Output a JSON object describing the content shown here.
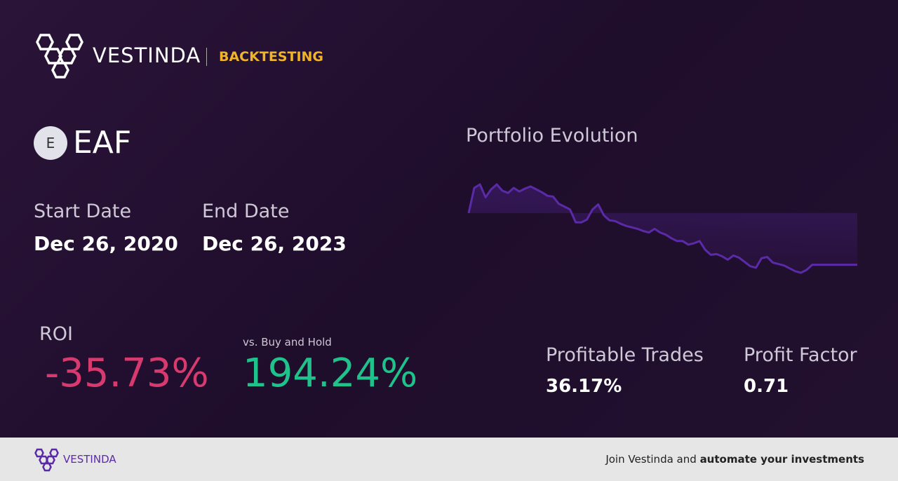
{
  "header": {
    "brand": "VESTINDA",
    "section": "BACKTESTING"
  },
  "ticker": {
    "icon": "E",
    "symbol": "EAF"
  },
  "dates": {
    "start_label": "Start Date",
    "start": "Dec 26, 2020",
    "end_label": "End Date",
    "end": "Dec 26, 2023"
  },
  "roi": {
    "label": "ROI",
    "value": "-35.73%",
    "compare_label": "vs. Buy and Hold",
    "compare_value": "194.24%"
  },
  "stats": [
    {
      "label": "Profitable Trades",
      "value": "36.17%"
    },
    {
      "label": "Profit Factor",
      "value": "0.71"
    }
  ],
  "chart": {
    "type": "line",
    "title": "Portfolio Evolution",
    "color": "#5b2aa8",
    "values": [
      100,
      117.4,
      119.8,
      110.9,
      116.4,
      119.8,
      115.4,
      113.9,
      117.4,
      114.9,
      116.9,
      118.4,
      116.4,
      114.4,
      111.9,
      111.4,
      106.4,
      104.5,
      102.5,
      93.6,
      93.6,
      95.5,
      102.5,
      106.0,
      98.5,
      95.0,
      94.5,
      92.6,
      91.1,
      90.1,
      89.1,
      87.6,
      86.6,
      89.1,
      86.6,
      85.1,
      82.6,
      80.7,
      80.7,
      78.2,
      79.2,
      80.7,
      74.7,
      71.2,
      71.7,
      70.2,
      67.8,
      70.7,
      69.2,
      66.3,
      63.3,
      62.3,
      68.8,
      69.7,
      65.8,
      64.8,
      63.8,
      61.8,
      59.8,
      58.8,
      60.8,
      64.3,
      64.3,
      64.3,
      64.3,
      64.3,
      64.3,
      64.3,
      64.3,
      64.3
    ]
  },
  "footer": {
    "brand": "VESTINDA",
    "cta_prefix": "Join Vestinda and",
    "cta_bold": "automate your investments"
  }
}
